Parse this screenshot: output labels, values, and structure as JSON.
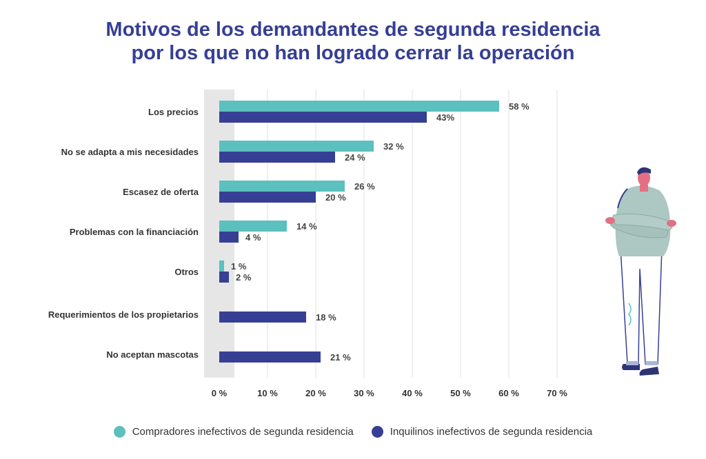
{
  "title": {
    "line1": "Motivos de los demandantes de segunda residencia",
    "line2": "por los que no han logrado cerrar la operación"
  },
  "colors": {
    "title": "#363f94",
    "series1": "#5bc0be",
    "series2": "#363f94",
    "shade": "#e6e6e6",
    "grid": "#e0e0e0"
  },
  "legend": {
    "series1": "Compradores inefectivos de segunda residencia",
    "series2": "Inquilinos inefectivos de segunda residencia"
  },
  "chart_data": {
    "type": "bar",
    "orientation": "horizontal",
    "title": "Motivos de los demandantes de segunda residencia por los que no han logrado cerrar la operación",
    "categories": [
      "Los precios",
      "No se adapta a mis necesidades",
      "Escasez de oferta",
      "Problemas con la financiación",
      "Otros",
      "Requerimientos de los propietarios",
      "No aceptan mascotas"
    ],
    "series": [
      {
        "name": "Compradores inefectivos de segunda residencia",
        "values": [
          58,
          32,
          26,
          14,
          1,
          null,
          null
        ],
        "labels": [
          "58 %",
          "32 %",
          "26 %",
          "14 %",
          "1 %",
          null,
          null
        ]
      },
      {
        "name": "Inquilinos inefectivos de segunda residencia",
        "values": [
          43,
          24,
          20,
          4,
          2,
          18,
          21
        ],
        "labels": [
          "43%",
          "24 %",
          "20 %",
          "4 %",
          "2 %",
          "18 %",
          "21 %"
        ]
      }
    ],
    "xlim": [
      0,
      70
    ],
    "xticks": [
      "0 %",
      "10 %",
      "20 %",
      "30 %",
      "40 %",
      "50 %",
      "60 %",
      "70 %"
    ],
    "xlabel": "",
    "ylabel": "",
    "grid": true,
    "legend_position": "bottom"
  }
}
